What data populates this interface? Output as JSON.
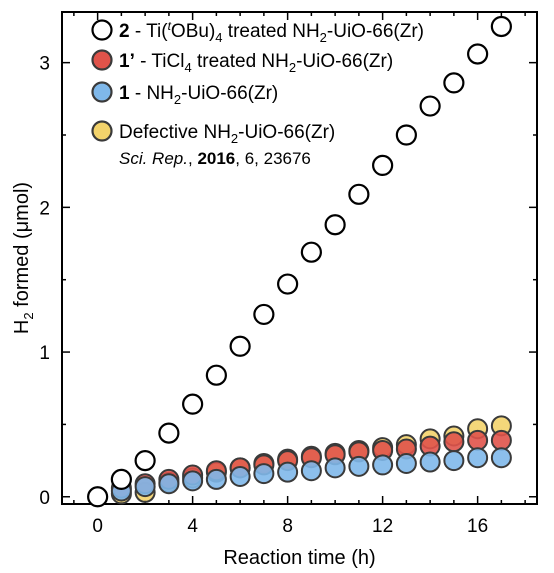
{
  "chart_data": {
    "type": "scatter",
    "xlabel": "Reaction time (h)",
    "ylabel": "formed (μmol)",
    "ylabel_species": "H",
    "ylabel_subscript": "2",
    "xlim": [
      -1.5,
      18.5
    ],
    "ylim": [
      -0.05,
      3.35
    ],
    "xticks": [
      0,
      4,
      8,
      12,
      16
    ],
    "yticks": [
      0,
      1,
      2,
      3
    ],
    "series": [
      {
        "key": "s2",
        "fill": "#ffffff",
        "stroke": "#000000",
        "label_id": "2",
        "label_parts": [
          " - Ti(",
          "t",
          "OBu)",
          "4",
          " treated NH",
          "2",
          "-UiO-66(Zr)"
        ],
        "x": [
          0,
          1,
          2,
          3,
          4,
          5,
          6,
          7,
          8,
          9,
          10,
          11,
          12,
          13,
          14,
          15,
          16,
          17
        ],
        "y": [
          0.0,
          0.12,
          0.25,
          0.44,
          0.64,
          0.84,
          1.04,
          1.26,
          1.47,
          1.69,
          1.88,
          2.09,
          2.29,
          2.5,
          2.7,
          2.86,
          3.06,
          3.25
        ]
      },
      {
        "key": "s1p",
        "fill": "#e0534a",
        "stroke": "#3a3a3a",
        "label_id": "1’",
        "label_parts": [
          " - TiCl",
          "4",
          " treated NH",
          "2",
          "-UiO-66(Zr)"
        ],
        "x": [
          1,
          2,
          3,
          4,
          5,
          6,
          7,
          8,
          9,
          10,
          11,
          12,
          13,
          14,
          15,
          16,
          17
        ],
        "y": [
          0.06,
          0.09,
          0.12,
          0.15,
          0.18,
          0.2,
          0.22,
          0.25,
          0.27,
          0.29,
          0.31,
          0.32,
          0.33,
          0.35,
          0.38,
          0.39,
          0.39
        ]
      },
      {
        "key": "s1",
        "fill": "#7fb8ea",
        "stroke": "#3a3a3a",
        "label_id": "1",
        "label_parts": [
          " - NH",
          "2",
          "-UiO-66(Zr)"
        ],
        "x": [
          1,
          2,
          3,
          4,
          5,
          6,
          7,
          8,
          9,
          10,
          11,
          12,
          13,
          14,
          15,
          16,
          17
        ],
        "y": [
          0.04,
          0.07,
          0.09,
          0.11,
          0.12,
          0.14,
          0.16,
          0.17,
          0.18,
          0.2,
          0.21,
          0.22,
          0.23,
          0.24,
          0.25,
          0.27,
          0.27
        ]
      },
      {
        "key": "sdef",
        "fill": "#f3d36b",
        "stroke": "#3a3a3a",
        "label_id": "",
        "label_parts": [
          "Defective NH",
          "2",
          "-UiO-66(Zr)"
        ],
        "x": [
          1,
          2,
          3,
          4,
          5,
          6,
          7,
          8,
          9,
          10,
          11,
          12,
          13,
          14,
          15,
          16,
          17
        ],
        "y": [
          0.02,
          0.03,
          0.1,
          0.13,
          0.17,
          0.2,
          0.23,
          0.26,
          0.28,
          0.3,
          0.32,
          0.34,
          0.36,
          0.4,
          0.42,
          0.47,
          0.49
        ]
      }
    ],
    "reference": {
      "journal": "Sci. Rep.",
      "year": "2016",
      "rest": ", 6, 23676"
    }
  }
}
